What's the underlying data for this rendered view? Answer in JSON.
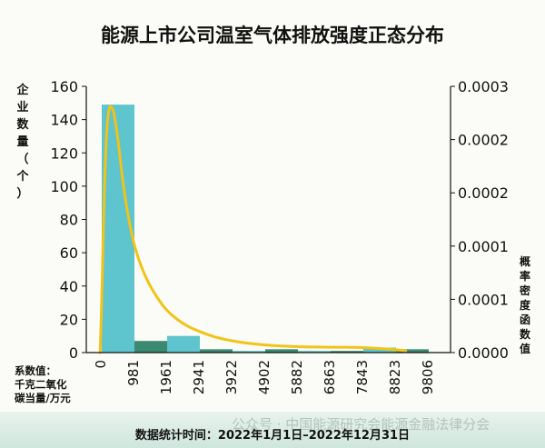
{
  "chart_data": {
    "type": "bar",
    "title": "能源上市公司温室气体排放强度正态分布",
    "ylabel_left": "企业数量（个）",
    "ylabel_right": "概率密度函数值",
    "xlabel": "系数值：千克二氧化碳当量/万元",
    "x_ticks": [
      "0",
      "981",
      "1961",
      "2941",
      "3922",
      "4902",
      "5882",
      "6863",
      "7843",
      "8823",
      "9806"
    ],
    "bins": [
      {
        "from": "0",
        "to": "981",
        "count": 149,
        "color": "#5ec4cd"
      },
      {
        "from": "981",
        "to": "1961",
        "count": 7,
        "color": "#3a8a72"
      },
      {
        "from": "1961",
        "to": "2941",
        "count": 10,
        "color": "#5ec4cd"
      },
      {
        "from": "2941",
        "to": "3922",
        "count": 2,
        "color": "#3a8a72"
      },
      {
        "from": "3922",
        "to": "4902",
        "count": 1,
        "color": "#5ec4cd"
      },
      {
        "from": "4902",
        "to": "5882",
        "count": 2,
        "color": "#3a8a72"
      },
      {
        "from": "5882",
        "to": "6863",
        "count": 1,
        "color": "#5ec4cd"
      },
      {
        "from": "6863",
        "to": "7843",
        "count": 1,
        "color": "#3a8a72"
      },
      {
        "from": "7843",
        "to": "8823",
        "count": 3,
        "color": "#5ec4cd"
      },
      {
        "from": "8823",
        "to": "9806",
        "count": 2,
        "color": "#3a8a72"
      }
    ],
    "ylim_left": [
      0,
      160
    ],
    "yticks_left": [
      0,
      20,
      40,
      60,
      80,
      100,
      120,
      140,
      160
    ],
    "yticks_right_labels": [
      "0.0000",
      "0.0001",
      "0.0001",
      "0.0002",
      "0.0002",
      "0.0003"
    ],
    "curve": {
      "color": "#f2c318",
      "points": [
        [
          -0.05,
          0
        ],
        [
          0.0,
          30
        ],
        [
          0.05,
          75
        ],
        [
          0.1,
          110
        ],
        [
          0.15,
          133
        ],
        [
          0.2,
          144
        ],
        [
          0.25,
          148
        ],
        [
          0.3,
          147.5
        ],
        [
          0.35,
          146
        ],
        [
          0.4,
          141
        ],
        [
          0.5,
          128
        ],
        [
          0.6,
          110
        ],
        [
          0.7,
          95
        ],
        [
          0.8,
          83
        ],
        [
          0.9,
          73
        ],
        [
          1.0,
          64
        ],
        [
          1.2,
          52
        ],
        [
          1.4,
          43
        ],
        [
          1.6,
          36
        ],
        [
          1.8,
          30
        ],
        [
          2.0,
          25
        ],
        [
          2.3,
          20
        ],
        [
          2.6,
          16
        ],
        [
          3.0,
          12.5
        ],
        [
          3.5,
          9
        ],
        [
          4.0,
          7
        ],
        [
          4.5,
          5.5
        ],
        [
          5.0,
          4.5
        ],
        [
          5.5,
          4
        ],
        [
          6.0,
          3.5
        ],
        [
          6.5,
          3.3
        ],
        [
          7.0,
          3.2
        ],
        [
          7.5,
          3.2
        ],
        [
          8.0,
          3
        ],
        [
          8.5,
          2.5
        ],
        [
          9.0,
          1.8
        ],
        [
          9.3,
          1
        ]
      ]
    },
    "colors": {
      "axis": "#111111",
      "bar_light": "#5ec4cd",
      "bar_dark": "#3a8a72",
      "curve": "#f2c318"
    }
  },
  "footer": {
    "stats_time": "数据统计时间：2022年1月1日–2022年12月31日",
    "watermark": "公众号 · 中国能源研究会能源金融法律分会"
  }
}
